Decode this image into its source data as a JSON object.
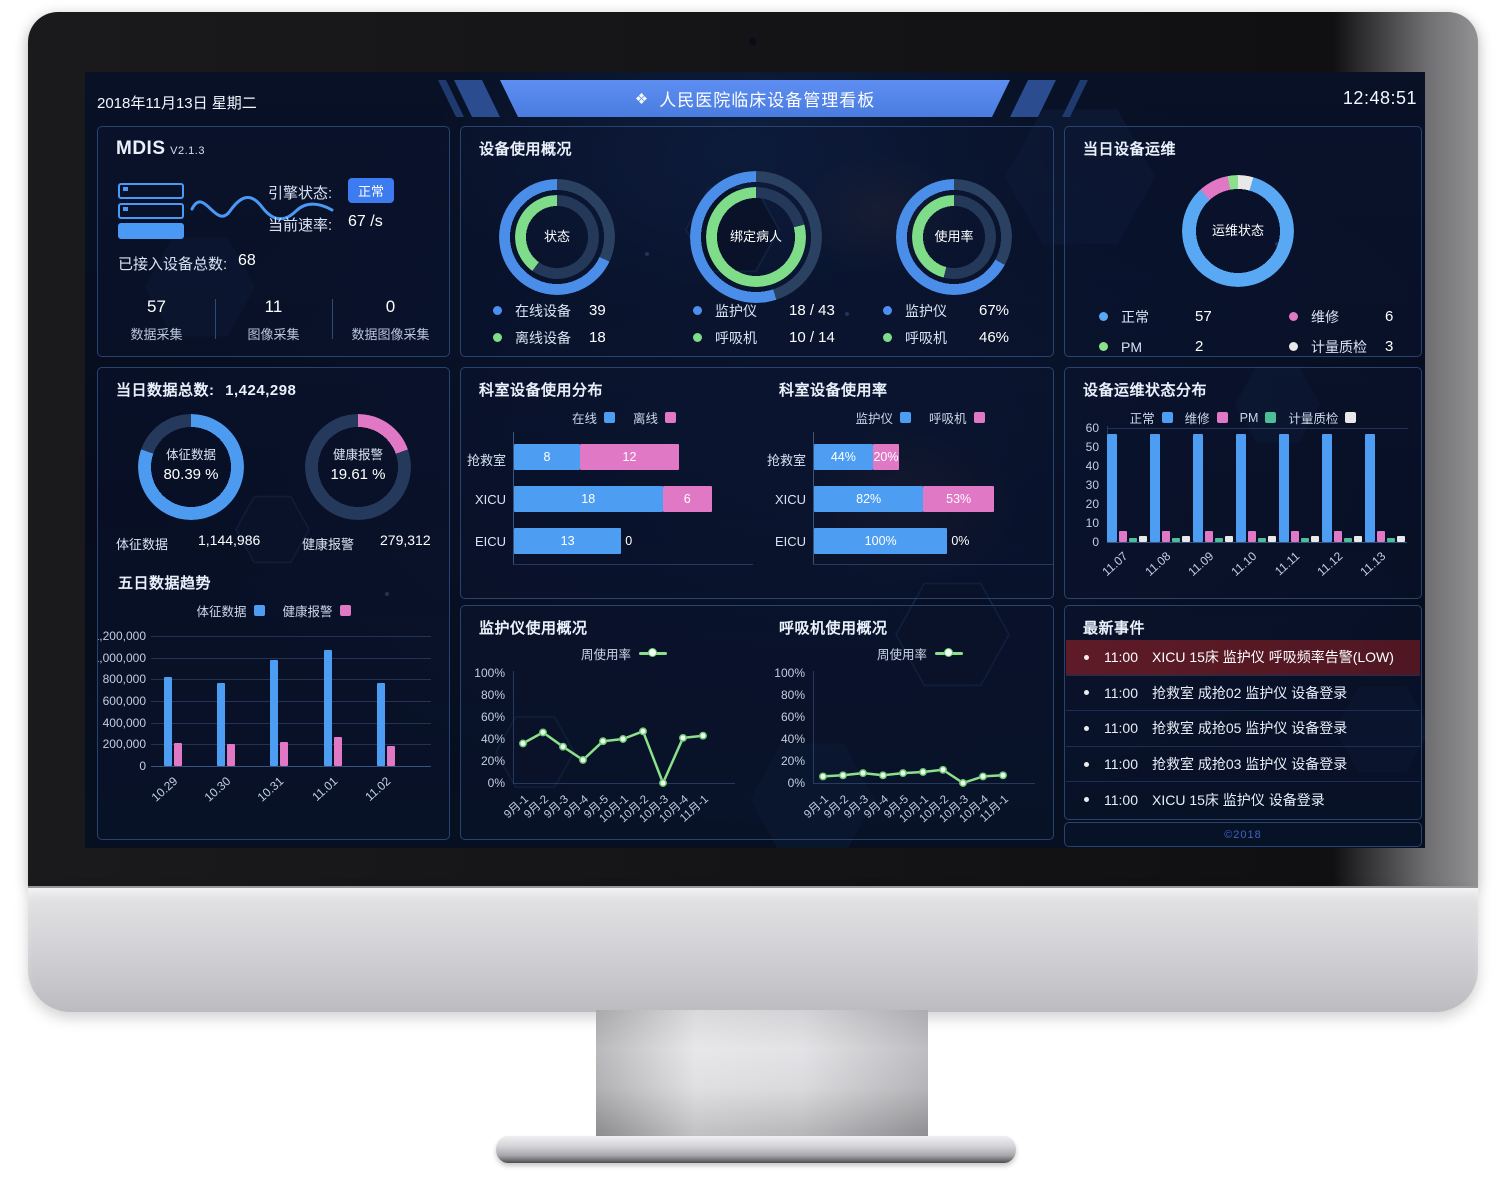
{
  "header": {
    "date": "2018年11月13日 星期二",
    "title": "人民医院临床设备管理看板",
    "icon": "❖",
    "time": "12:48:51"
  },
  "colors": {
    "blue": "#4D9EF2",
    "ring_blue": "#4A8EEA",
    "green": "#7FDC89",
    "teal": "#4DBE97",
    "pink": "#E178C5",
    "white": "#E8E8E8",
    "line_green": "#8BE08B",
    "ops_blue": "#58A8F4",
    "track_outer": "#2B4162",
    "track_inner": "#24385A",
    "accent_badge": "#3D7BF0"
  },
  "mdis": {
    "name": "MDIS",
    "version": "V2.1.3",
    "engine_status_label": "引擎状态:",
    "engine_status": "正常",
    "rate_label": "当前速率:",
    "rate_value": "67 /s",
    "devices_label": "已接入设备总数:",
    "devices_value": "68",
    "stats": [
      {
        "value": "57",
        "label": "数据采集"
      },
      {
        "value": "11",
        "label": "图像采集"
      },
      {
        "value": "0",
        "label": "数据图像采集"
      }
    ]
  },
  "usage_overview": {
    "title": "设备使用概况",
    "donuts": [
      {
        "center": "状态",
        "legend": [
          {
            "label": "在线设备",
            "value": "39",
            "color": "#4D8FF0"
          },
          {
            "label": "离线设备",
            "value": "18",
            "color": "#7FDC89"
          }
        ]
      },
      {
        "center": "绑定病人",
        "legend": [
          {
            "label": "监护仪",
            "value": "18 / 43",
            "color": "#4D8FF0"
          },
          {
            "label": "呼吸机",
            "value": "10 / 14",
            "color": "#7FDC89"
          }
        ]
      },
      {
        "center": "使用率",
        "legend": [
          {
            "label": "监护仪",
            "value": "67%",
            "color": "#4D8FF0"
          },
          {
            "label": "呼吸机",
            "value": "46%",
            "color": "#7FDC89"
          }
        ]
      }
    ]
  },
  "daily_ops": {
    "title": "当日设备运维",
    "center": "运维状态",
    "legend": [
      {
        "label": "正常",
        "value": "57",
        "color": "#58A8F4"
      },
      {
        "label": "维修",
        "value": "6",
        "color": "#E178C5"
      },
      {
        "label": "PM",
        "value": "2",
        "color": "#8BE08B"
      },
      {
        "label": "计量质检",
        "value": "3",
        "color": "#E8E8E8"
      }
    ]
  },
  "daily_data": {
    "title_label": "当日数据总数:",
    "title_value": "1,424,298",
    "donuts": [
      {
        "center_label": "体征数据",
        "center_value": "80.39 %",
        "bottom_label": "体征数据",
        "bottom_value": "1,144,986"
      },
      {
        "center_label": "健康报警",
        "center_value": "19.61 %",
        "bottom_label": "健康报警",
        "bottom_value": "279,312"
      }
    ]
  },
  "five_day": {
    "title": "五日数据趋势"
  },
  "dept_dist": {
    "title": "科室设备使用分布"
  },
  "dept_rate": {
    "title": "科室设备使用率"
  },
  "ops_dist": {
    "title": "设备运维状态分布"
  },
  "monitor_chart": {
    "title": "监护仪使用概况",
    "legend": "周使用率"
  },
  "vent_chart": {
    "title": "呼吸机使用概况",
    "legend": "周使用率"
  },
  "events": {
    "title": "最新事件",
    "items": [
      {
        "time": "11:00",
        "text": "XICU 15床 监护仪 呼吸频率告警(LOW)",
        "alarm": true
      },
      {
        "time": "11:00",
        "text": "抢救室 成抢02 监护仪 设备登录",
        "alarm": false
      },
      {
        "time": "11:00",
        "text": "抢救室 成抢05 监护仪 设备登录",
        "alarm": false
      },
      {
        "time": "11:00",
        "text": "抢救室 成抢03 监护仪 设备登录",
        "alarm": false
      },
      {
        "time": "11:00",
        "text": "XICU 15床 监护仪 设备登录",
        "alarm": false
      }
    ]
  },
  "footer": {
    "copyright": "©2018"
  },
  "chart_data": [
    {
      "id": "donut-status",
      "type": "pie",
      "variant": "double-ring",
      "center": "状态",
      "direction": "ccw",
      "series": [
        {
          "name": "在线设备",
          "value": 39,
          "ring_pct": 68,
          "color": "#4A8EEA"
        },
        {
          "name": "离线设备",
          "value": 18,
          "ring_pct": 40,
          "color": "#7FDC89"
        }
      ]
    },
    {
      "id": "donut-bind",
      "type": "pie",
      "variant": "double-ring",
      "center": "绑定病人",
      "direction": "ccw",
      "series": [
        {
          "name": "监护仪",
          "value": "18 / 43",
          "ring_pct": 55,
          "color": "#4A8EEA"
        },
        {
          "name": "呼吸机",
          "value": "10 / 14",
          "ring_pct": 79,
          "color": "#7FDC89"
        }
      ]
    },
    {
      "id": "donut-rate",
      "type": "pie",
      "variant": "double-ring",
      "center": "使用率",
      "direction": "ccw",
      "series": [
        {
          "name": "监护仪",
          "value": 67,
          "ring_pct": 67,
          "color": "#4A8EEA"
        },
        {
          "name": "呼吸机",
          "value": 46,
          "ring_pct": 46,
          "color": "#7FDC89"
        }
      ]
    },
    {
      "id": "donut-ops",
      "type": "pie",
      "center": "运维状态",
      "total": 68,
      "segments": [
        {
          "name": "计量质检",
          "value": 3,
          "color": "#E8E8E8"
        },
        {
          "name": "正常",
          "value": 57,
          "color": "#58A8F4"
        },
        {
          "name": "维修",
          "value": 6,
          "color": "#E178C5"
        },
        {
          "name": "PM",
          "value": 2,
          "color": "#8BE08B"
        }
      ]
    },
    {
      "id": "donut-vital",
      "type": "pie",
      "variant": "single",
      "name": "体征数据",
      "pct": 80.39,
      "color": "#4D9BF0"
    },
    {
      "id": "donut-alert",
      "type": "pie",
      "variant": "single",
      "name": "健康报警",
      "pct": 19.61,
      "color": "#E178C5"
    },
    {
      "id": "five-day",
      "type": "bar",
      "title": "五日数据趋势",
      "categories": [
        "10.29",
        "10.30",
        "10.31",
        "11.01",
        "11.02"
      ],
      "series": [
        {
          "name": "体征数据",
          "color": "#4D9EF2",
          "values": [
            820000,
            770000,
            980000,
            1070000,
            770000
          ]
        },
        {
          "name": "健康报警",
          "color": "#E178C5",
          "values": [
            215000,
            200000,
            225000,
            270000,
            185000
          ]
        }
      ],
      "ylim": [
        0,
        1200000
      ],
      "yticks": [
        "1,200,000",
        "1,000,000",
        "800,000",
        "600,000",
        "400,000",
        "200,000",
        "0"
      ]
    },
    {
      "id": "dept-dist",
      "type": "hbar-stacked",
      "title": "科室设备使用分布",
      "categories": [
        "抢救室",
        "XICU",
        "EICU"
      ],
      "xmax": 24,
      "series": [
        {
          "name": "在线",
          "color": "#4D9EF2",
          "values": [
            8,
            18,
            13
          ]
        },
        {
          "name": "离线",
          "color": "#E178C5",
          "values": [
            12,
            6,
            0
          ]
        }
      ]
    },
    {
      "id": "dept-rate",
      "type": "hbar-stacked",
      "title": "科室设备使用率",
      "unit": "%",
      "categories": [
        "抢救室",
        "XICU",
        "EICU"
      ],
      "xmax": 135,
      "series": [
        {
          "name": "监护仪",
          "color": "#4D9EF2",
          "values": [
            44,
            82,
            100
          ]
        },
        {
          "name": "呼吸机",
          "color": "#E178C5",
          "values": [
            20,
            53,
            0
          ]
        }
      ]
    },
    {
      "id": "ops-dist",
      "type": "bar",
      "title": "设备运维状态分布",
      "categories": [
        "11.07",
        "11.08",
        "11.09",
        "11.10",
        "11.11",
        "11.12",
        "11.13"
      ],
      "series": [
        {
          "name": "正常",
          "color": "#4D9EF2",
          "values": [
            57,
            57,
            57,
            57,
            57,
            57,
            57
          ]
        },
        {
          "name": "维修",
          "color": "#E178C5",
          "values": [
            6,
            6,
            6,
            6,
            6,
            6,
            6
          ]
        },
        {
          "name": "PM",
          "color": "#4DBE97",
          "values": [
            2,
            2,
            2,
            2,
            2,
            2,
            2
          ]
        },
        {
          "name": "计量质检",
          "color": "#E8E8E8",
          "values": [
            3,
            3,
            3,
            3,
            3,
            3,
            3
          ]
        }
      ],
      "ylim": [
        0,
        60
      ],
      "yticks": [
        0,
        10,
        20,
        30,
        40,
        50,
        60
      ]
    },
    {
      "id": "monitor-usage",
      "type": "line",
      "title": "监护仪使用概况",
      "name": "周使用率",
      "color": "#8BE08B",
      "x": [
        "9月-1",
        "9月-2",
        "9月-3",
        "9月-4",
        "9月-5",
        "10月-1",
        "10月-2",
        "10月-3",
        "10月-4",
        "11月-1"
      ],
      "values": [
        36,
        46,
        33,
        21,
        38,
        40,
        47,
        0,
        41,
        43
      ],
      "ylim": [
        0,
        100
      ],
      "yticks": [
        "100%",
        "80%",
        "60%",
        "40%",
        "20%",
        "0%"
      ]
    },
    {
      "id": "vent-usage",
      "type": "line",
      "title": "呼吸机使用概况",
      "name": "周使用率",
      "color": "#8BE08B",
      "x": [
        "9月-1",
        "9月-2",
        "9月-3",
        "9月-4",
        "9月-5",
        "10月-1",
        "10月-2",
        "10月-3",
        "10月-4",
        "11月-1"
      ],
      "values": [
        6,
        7,
        9,
        7,
        9,
        10,
        12,
        0,
        6,
        7
      ],
      "ylim": [
        0,
        100
      ],
      "yticks": [
        "100%",
        "80%",
        "60%",
        "40%",
        "20%",
        "0%"
      ]
    }
  ]
}
